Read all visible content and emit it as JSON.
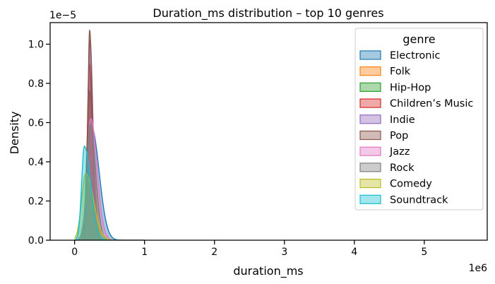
{
  "chart_data": {
    "type": "area",
    "title": "Duration_ms distribution – top 10 genres",
    "xlabel": "duration_ms",
    "ylabel": "Density",
    "x_offset_label": "1e6",
    "y_offset_label": "1e−5",
    "xlim": [
      -350000,
      5900000
    ],
    "ylim": [
      0,
      1.11e-05
    ],
    "x_ticks": [
      0,
      1000000,
      2000000,
      3000000,
      4000000,
      5000000
    ],
    "x_tick_labels": [
      "0",
      "1",
      "2",
      "3",
      "4",
      "5"
    ],
    "y_ticks": [
      0,
      2e-06,
      4e-06,
      6e-06,
      8e-06,
      1e-05
    ],
    "y_tick_labels": [
      "0.0",
      "0.2",
      "0.4",
      "0.6",
      "0.8",
      "1.0"
    ],
    "grid": false,
    "legend": {
      "title": "genre",
      "placement": "top-right"
    },
    "series": [
      {
        "name": "Electronic",
        "color": "#1f77b4",
        "peak_x": 240000,
        "peak_y": 5.8e-06,
        "sigma_left": 60000,
        "sigma_right": 110000,
        "tail_to": 1000000
      },
      {
        "name": "Folk",
        "color": "#ff7f0e",
        "peak_x": 215000,
        "peak_y": 7.4e-06,
        "sigma_left": 35000,
        "sigma_right": 60000,
        "tail_to": 700000
      },
      {
        "name": "Hip-Hop",
        "color": "#2ca02c",
        "peak_x": 215000,
        "peak_y": 7.6e-06,
        "sigma_left": 40000,
        "sigma_right": 55000,
        "tail_to": 650000
      },
      {
        "name": "Children’s Music",
        "color": "#d62728",
        "peak_x": 210000,
        "peak_y": 9e-06,
        "sigma_left": 28000,
        "sigma_right": 45000,
        "tail_to": 600000
      },
      {
        "name": "Indie",
        "color": "#9467bd",
        "peak_x": 220000,
        "peak_y": 1.02e-05,
        "sigma_left": 28000,
        "sigma_right": 42000,
        "tail_to": 600000
      },
      {
        "name": "Pop",
        "color": "#8c564b",
        "peak_x": 215000,
        "peak_y": 1.07e-05,
        "sigma_left": 25000,
        "sigma_right": 40000,
        "tail_to": 550000
      },
      {
        "name": "Jazz",
        "color": "#e377c2",
        "peak_x": 230000,
        "peak_y": 6.2e-06,
        "sigma_left": 50000,
        "sigma_right": 90000,
        "tail_to": 800000
      },
      {
        "name": "Rock",
        "color": "#7f7f7f",
        "peak_x": 225000,
        "peak_y": 5.9e-06,
        "sigma_left": 45000,
        "sigma_right": 75000,
        "tail_to": 700000
      },
      {
        "name": "Comedy",
        "color": "#bcbd22",
        "peak_x": 160000,
        "peak_y": 3.4e-06,
        "sigma_left": 60000,
        "sigma_right": 110000,
        "tail_to": 750000
      },
      {
        "name": "Soundtrack",
        "color": "#17becf",
        "peak_x": 140000,
        "peak_y": 4.8e-06,
        "sigma_left": 40000,
        "sigma_right": 90000,
        "tail_to": 700000
      }
    ]
  }
}
